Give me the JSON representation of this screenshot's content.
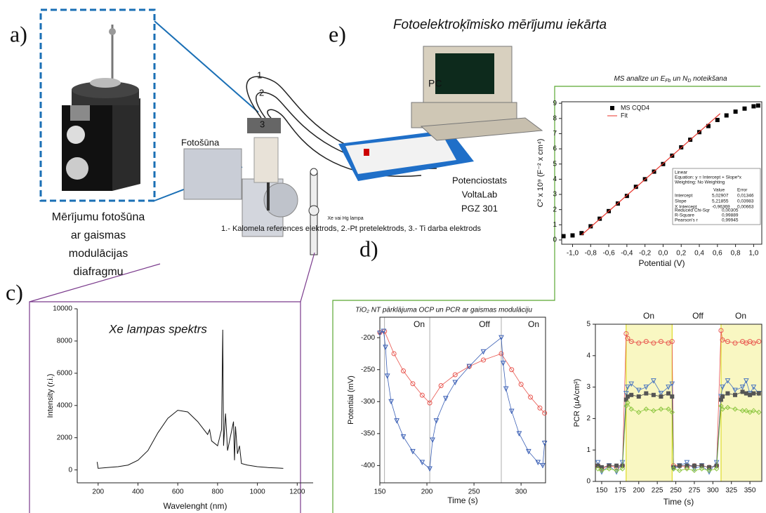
{
  "labels": {
    "a": "a)",
    "c": "c)",
    "d": "d)",
    "e": "e)"
  },
  "setup": {
    "title": "Fotoelektroķīmisko mērījumu iekārta",
    "cell_caption": [
      "Mērījumu fotošūna",
      "ar gaismas",
      "modulācijas",
      "diafragmu"
    ],
    "cell": "Fotošūna",
    "electrodes": [
      "1",
      "2",
      "3"
    ],
    "pc": "PC",
    "potentiostat": [
      "Potenciostats",
      "VoltaLab",
      "PGZ 301"
    ],
    "lamp": "Xe vai Hg lampa",
    "legend": "1.- Kalomela references elektrods, 2.-Pt pretelektrods, 3.- Ti darba elektrods"
  },
  "d_title": "TiO₂ NT pārklājuma OCP un PCR ar gaismas modulāciju",
  "chart_data": [
    {
      "type": "line",
      "annotation": "Xe lampas spektrs",
      "xlabel": "Wavelenght (nm)",
      "ylabel": "Intensity (r.i.)",
      "xlim": [
        95,
        1280
      ],
      "ylim": [
        -800,
        10000
      ],
      "xticks": [
        200,
        400,
        600,
        800,
        1000,
        1200
      ],
      "yticks": [
        0,
        2000,
        4000,
        6000,
        8000,
        10000
      ],
      "series": [
        {
          "color": "#111111",
          "x": [
            195,
            200,
            250,
            300,
            350,
            400,
            450,
            500,
            550,
            600,
            650,
            700,
            750,
            760,
            770,
            800,
            820,
            826,
            830,
            840,
            850,
            880,
            885,
            890,
            900,
            910,
            920,
            950,
            1000,
            1050,
            1100,
            1130
          ],
          "values": [
            500,
            100,
            150,
            200,
            300,
            600,
            1200,
            2300,
            3200,
            3700,
            3600,
            3000,
            2200,
            2500,
            1800,
            1500,
            2500,
            8700,
            1500,
            3500,
            1200,
            3000,
            600,
            2700,
            1000,
            1500,
            400,
            300,
            200,
            150,
            120,
            100
          ]
        }
      ]
    },
    {
      "type": "scatter",
      "title": [
        "MS analīze un E",
        "Fb",
        " un N",
        "D",
        " noteikšana"
      ],
      "xlabel": "Potential (V)",
      "ylabel": "C² x 10⁹ (F⁻² x cm⁴)",
      "xlim": [
        -1.12,
        1.09
      ],
      "ylim": [
        -0.28,
        9.1
      ],
      "xticks": [
        {
          "value": -1.0,
          "label": "-1,0"
        },
        {
          "value": -0.8,
          "label": "-0,8"
        },
        {
          "value": -0.6,
          "label": "-0,6"
        },
        {
          "value": -0.4,
          "label": "-0,4"
        },
        {
          "value": -0.2,
          "label": "-0,2"
        },
        {
          "value": 0.0,
          "label": "0,0"
        },
        {
          "value": 0.2,
          "label": "0,2"
        },
        {
          "value": 0.4,
          "label": "0,4"
        },
        {
          "value": 0.6,
          "label": "0,6"
        },
        {
          "value": 0.8,
          "label": "0,8"
        },
        {
          "value": 1.0,
          "label": "1,0"
        }
      ],
      "yticks": [
        0,
        1,
        2,
        3,
        4,
        5,
        6,
        7,
        8,
        9
      ],
      "series": [
        {
          "name": "MS CQD4",
          "color": "#000000",
          "marker": "square",
          "x": [
            -1.1,
            -1.0,
            -0.9,
            -0.8,
            -0.7,
            -0.6,
            -0.5,
            -0.4,
            -0.3,
            -0.2,
            -0.1,
            0,
            0.1,
            0.2,
            0.3,
            0.4,
            0.5,
            0.6,
            0.7,
            0.8,
            0.9,
            1.0,
            1.05
          ],
          "values": [
            0.25,
            0.3,
            0.45,
            0.9,
            1.4,
            1.9,
            2.4,
            2.9,
            3.5,
            4.0,
            4.5,
            5.0,
            5.55,
            6.1,
            6.6,
            7.1,
            7.5,
            7.9,
            8.2,
            8.45,
            8.65,
            8.8,
            8.85
          ]
        },
        {
          "name": "Fit",
          "color": "#e8332a",
          "marker": "none",
          "x": [
            -0.9,
            0.63
          ],
          "values": [
            0.33,
            8.32
          ]
        }
      ],
      "fit_stats": {
        "method": "Linear",
        "equation": "Equation: y = Intercept + Slope*x",
        "weighting": "Weighting: No Weighting",
        "header": [
          "Value",
          "Error"
        ],
        "rows": [
          [
            "Intercept",
            "5,02907",
            "0,01346"
          ],
          [
            "Slope",
            "5,21855",
            "0,03983"
          ],
          [
            "X Intercept",
            "-0,96369",
            "0,00663"
          ]
        ],
        "extra": [
          [
            "Reduced Chi-Sqr",
            "0,00305"
          ],
          [
            "R-Square",
            "0,99889"
          ],
          [
            "Pearson's r",
            "0,99945"
          ]
        ]
      }
    },
    {
      "type": "scatter",
      "xlabel": "Time (s)",
      "ylabel": "Potential (mV)",
      "xlim": [
        150,
        326
      ],
      "ylim": [
        -427,
        -168
      ],
      "xticks": [
        150,
        200,
        250,
        300
      ],
      "yticks": [
        -400,
        -350,
        -300,
        -250,
        -200
      ],
      "events": [
        155,
        203,
        279
      ],
      "annotations": [
        "On",
        "Off",
        "On"
      ],
      "series": [
        {
          "color": "#e8554e",
          "marker": "circle",
          "x": [
            150,
            155,
            165,
            175,
            185,
            195,
            203,
            215,
            230,
            245,
            260,
            279,
            290,
            300,
            310,
            320,
            325
          ],
          "values": [
            -192,
            -190,
            -225,
            -252,
            -272,
            -290,
            -302,
            -275,
            -258,
            -245,
            -235,
            -225,
            -250,
            -273,
            -293,
            -310,
            -318
          ]
        },
        {
          "color": "#3a5fb5",
          "marker": "triangle",
          "x": [
            150,
            154,
            156,
            158,
            162,
            168,
            175,
            185,
            195,
            203,
            206,
            210,
            220,
            230,
            245,
            260,
            279,
            281,
            284,
            290,
            298,
            308,
            318,
            323,
            325
          ],
          "values": [
            -193,
            -190,
            -215,
            -260,
            -300,
            -330,
            -355,
            -378,
            -395,
            -405,
            -360,
            -330,
            -295,
            -270,
            -245,
            -222,
            -200,
            -240,
            -280,
            -315,
            -350,
            -378,
            -395,
            -400,
            -365
          ]
        }
      ]
    },
    {
      "type": "scatter",
      "xlabel": "Time (s)",
      "ylabel": "PCR (µA/cm²)",
      "xlim": [
        141.5,
        366
      ],
      "ylim": [
        0,
        5
      ],
      "xticks": [
        150,
        175,
        200,
        225,
        250,
        275,
        300,
        325,
        350
      ],
      "yticks": [
        0,
        1,
        2,
        3,
        4,
        5
      ],
      "shaded": [
        [
          183,
          245
        ],
        [
          311,
          366
        ]
      ],
      "annotations": [
        "On",
        "Off",
        "On"
      ],
      "x": [
        145,
        150,
        160,
        170,
        178,
        183,
        185,
        190,
        200,
        210,
        220,
        230,
        240,
        245,
        247,
        255,
        265,
        275,
        285,
        295,
        305,
        311,
        313,
        320,
        330,
        340,
        345,
        350,
        355,
        362
      ],
      "series": [
        {
          "color": "#e8554e",
          "marker": "circle",
          "values": [
            0.5,
            0.4,
            0.5,
            0.45,
            0.5,
            4.7,
            4.55,
            4.45,
            4.4,
            4.45,
            4.4,
            4.45,
            4.4,
            4.45,
            0.5,
            0.5,
            0.45,
            0.5,
            0.5,
            0.45,
            0.5,
            4.8,
            4.5,
            4.45,
            4.4,
            4.45,
            4.4,
            4.45,
            4.4,
            4.45
          ]
        },
        {
          "color": "#4a76c0",
          "marker": "triangle",
          "values": [
            0.6,
            0.3,
            0.5,
            0.3,
            0.6,
            2.8,
            3.0,
            3.1,
            2.9,
            3.0,
            3.2,
            2.8,
            3.0,
            3.1,
            0.4,
            0.5,
            0.6,
            0.4,
            0.5,
            0.3,
            0.6,
            2.7,
            3.0,
            3.2,
            2.9,
            3.0,
            3.2,
            2.8,
            3.0,
            2.8
          ]
        },
        {
          "color": "#555555",
          "marker": "square",
          "values": [
            0.5,
            0.45,
            0.5,
            0.5,
            0.5,
            2.6,
            2.7,
            2.75,
            2.7,
            2.8,
            2.75,
            2.7,
            2.8,
            2.7,
            0.45,
            0.5,
            0.5,
            0.5,
            0.5,
            0.45,
            0.5,
            2.6,
            2.7,
            2.8,
            2.75,
            2.85,
            2.8,
            2.75,
            2.8,
            2.8
          ]
        },
        {
          "color": "#8cc63f",
          "marker": "diamond",
          "values": [
            0.4,
            0.35,
            0.4,
            0.35,
            0.4,
            2.4,
            2.5,
            2.3,
            2.2,
            2.3,
            2.25,
            2.3,
            2.3,
            2.2,
            0.4,
            0.35,
            0.4,
            0.35,
            0.4,
            0.35,
            0.4,
            2.4,
            2.3,
            2.35,
            2.3,
            2.25,
            2.25,
            2.2,
            2.25,
            2.2
          ]
        }
      ]
    }
  ]
}
